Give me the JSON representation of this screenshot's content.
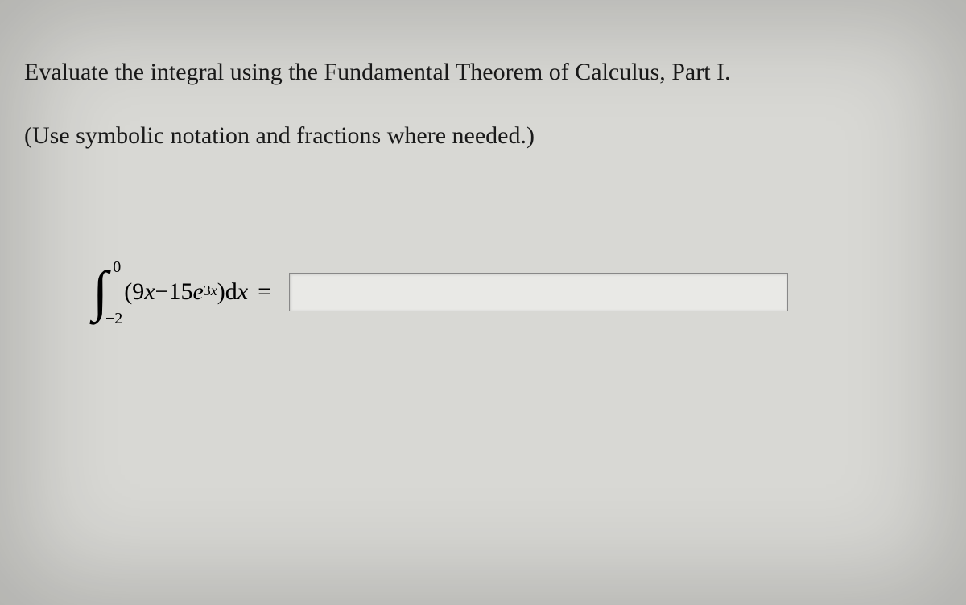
{
  "instruction_main": "Evaluate the integral using the Fundamental Theorem of Calculus, Part I.",
  "instruction_sub": "(Use symbolic notation and fractions where needed.)",
  "integral": {
    "upper_limit": "0",
    "lower_limit": "−2",
    "open_paren": "(",
    "term1_coef": "9",
    "term1_var": "x",
    "minus": " − ",
    "term2_coef": "15",
    "term2_base": "e",
    "term2_exp_coef": "3",
    "term2_exp_var": "x",
    "close_paren": ")",
    "differential_d": " d",
    "differential_var": "x",
    "equals": " ="
  },
  "answer_value": "",
  "colors": {
    "background": "#d8d8d4",
    "text": "#1a1a1a",
    "input_bg": "#e9e9e6",
    "input_border": "#888"
  },
  "typography": {
    "body_fontsize": 30,
    "integral_fontsize": 70,
    "limit_fontsize": 20,
    "superscript_fontsize": 18,
    "font_family": "Georgia/Times serif"
  }
}
